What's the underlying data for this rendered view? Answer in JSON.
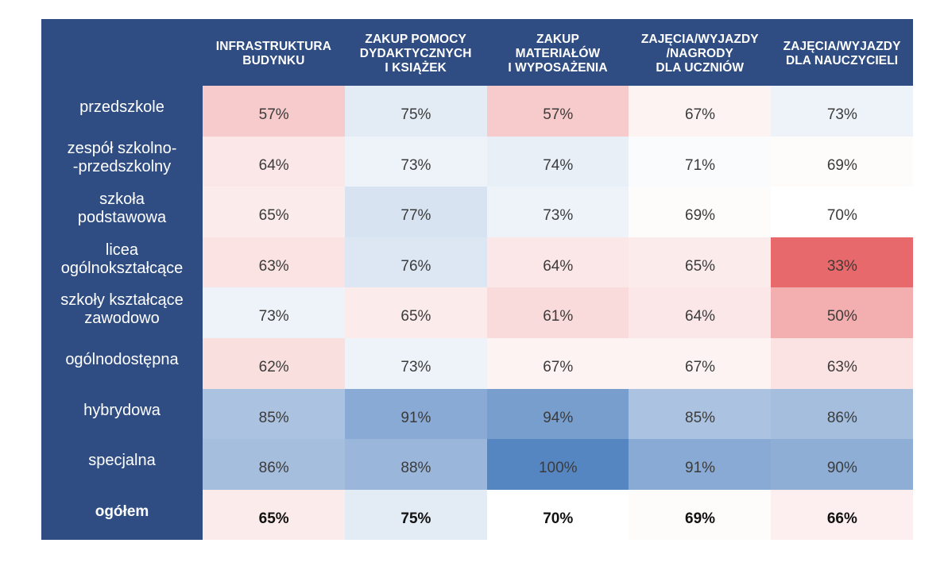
{
  "chart_data": {
    "type": "heatmap",
    "columns": [
      "INFRASTRUKTURA\nBUDYNKU",
      "ZAKUP POMOCY\nDYDAKTYCZNYCH\nI KSIĄŻEK",
      "ZAKUP\nMATERIAŁÓW\nI  WYPOSAŻENIA",
      "ZAJĘCIA/WYJAZDY\n/NAGRODY\nDLA UCZNIÓW",
      "ZAJĘCIA/WYJAZDY\nDLA NAUCZYCIELI"
    ],
    "rows": [
      "przedszkole",
      "zespół szkolno-\n-przedszkolny",
      "szkoła\npodstawowa",
      "licea\nogólnokształcące",
      "szkoły kształcące\nzawodowo",
      "ogólnodostępna",
      "hybrydowa",
      "specjalna"
    ],
    "values": [
      [
        57,
        75,
        57,
        67,
        73
      ],
      [
        64,
        73,
        74,
        71,
        69
      ],
      [
        65,
        77,
        73,
        69,
        70
      ],
      [
        63,
        76,
        64,
        65,
        33
      ],
      [
        73,
        65,
        61,
        64,
        50
      ],
      [
        62,
        73,
        67,
        67,
        63
      ],
      [
        85,
        91,
        94,
        85,
        86
      ],
      [
        86,
        88,
        100,
        91,
        90
      ]
    ],
    "total_row_label": "ogółem",
    "total_values": [
      65,
      75,
      70,
      69,
      66
    ],
    "value_suffix": "%",
    "color_scale": {
      "low": "#e8696b",
      "mid": "#ffffff",
      "high": "#5686c1",
      "low_value": 33,
      "mid_value": 70,
      "high_value": 100
    },
    "header_color": "#2f4d82"
  }
}
